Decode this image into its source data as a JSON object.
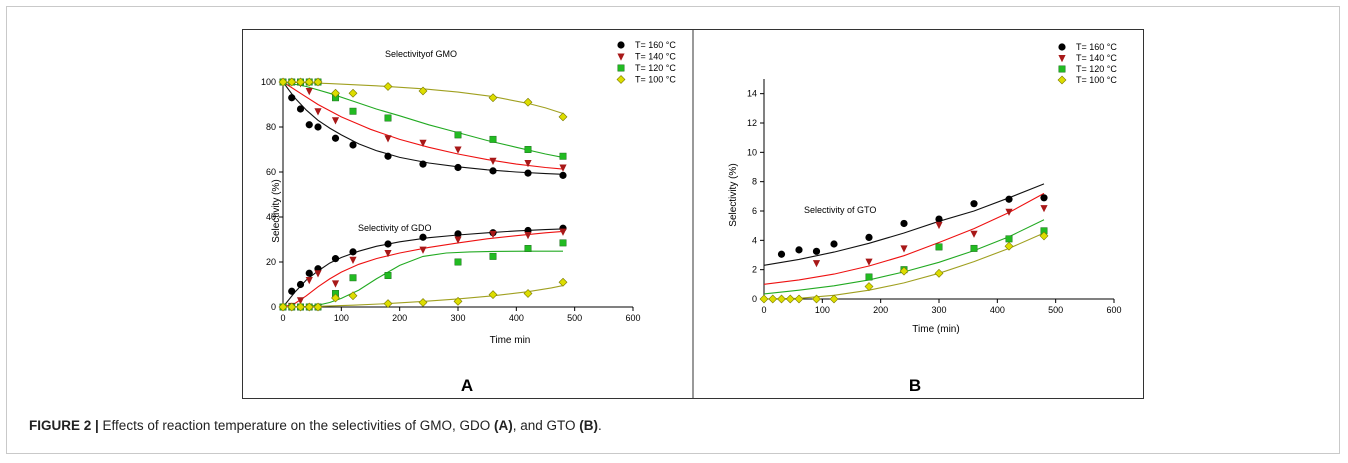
{
  "figure": {
    "caption": {
      "label": "FIGURE 2 |",
      "part1": " Effects of reaction temperature on the selectivities of GMO, GDO ",
      "ref_a": "(A)",
      "part2": ", and GTO ",
      "ref_b": "(B)",
      "part3": "."
    }
  },
  "colors": {
    "T160": "#000000",
    "T140": "#a81818",
    "T120": "#22bb22",
    "T100": "#dddd00",
    "fit160": "#111111",
    "fit140": "#ee1111",
    "fit120": "#22aa22",
    "fit100": "#a0a020"
  },
  "chart_data": [
    {
      "type": "scatter",
      "panel_label": "A",
      "xlabel": "Time min",
      "ylabel": "Selectivity  (%)",
      "xlim": [
        0,
        600
      ],
      "ylim": [
        0,
        100
      ],
      "xticks": [
        0,
        100,
        200,
        300,
        400,
        500,
        600
      ],
      "yticks": [
        0,
        20,
        40,
        60,
        80,
        100
      ],
      "grid": false,
      "legend_position": "top-right",
      "annotations": [
        "Selectivityof GMO",
        "Selectivity of GDO"
      ],
      "series": [
        {
          "name": "T= 160 °C",
          "group": "GMO",
          "marker": "circle",
          "color": "#000000",
          "x": [
            0,
            15,
            30,
            45,
            60,
            90,
            120,
            180,
            240,
            300,
            360,
            420,
            480
          ],
          "y": [
            100,
            93,
            88,
            81,
            80,
            75,
            72,
            67,
            63.5,
            62,
            60.5,
            59.5,
            58.5
          ]
        },
        {
          "name": "T= 140 °C",
          "group": "GMO",
          "marker": "triangle-down",
          "color": "#a81818",
          "x": [
            0,
            15,
            30,
            45,
            60,
            90,
            180,
            240,
            300,
            360,
            420,
            480
          ],
          "y": [
            100,
            100,
            99.5,
            96,
            87,
            83,
            75,
            73,
            70,
            65,
            64,
            62
          ]
        },
        {
          "name": "T= 120 °C",
          "group": "GMO",
          "marker": "square",
          "color": "#22bb22",
          "x": [
            0,
            15,
            30,
            45,
            60,
            90,
            120,
            180,
            300,
            360,
            420,
            480
          ],
          "y": [
            100,
            100,
            100,
            100,
            100,
            93,
            87,
            84,
            76.5,
            74.5,
            70,
            67
          ]
        },
        {
          "name": "T= 100 °C",
          "group": "GMO",
          "marker": "diamond",
          "color": "#dddd00",
          "x": [
            0,
            15,
            30,
            45,
            60,
            90,
            120,
            180,
            240,
            360,
            420,
            480
          ],
          "y": [
            100,
            100,
            100,
            100,
            100,
            95,
            95,
            98,
            96,
            93,
            91,
            84.5
          ]
        },
        {
          "group": "GDO",
          "marker": "circle",
          "color": "#000000",
          "x": [
            0,
            15,
            30,
            45,
            60,
            90,
            120,
            180,
            240,
            300,
            360,
            420,
            480
          ],
          "y": [
            0,
            7,
            10,
            15,
            17,
            21.5,
            24.5,
            28,
            31,
            32.5,
            33,
            34,
            35
          ]
        },
        {
          "group": "GDO",
          "marker": "triangle-down",
          "color": "#a81818",
          "x": [
            0,
            15,
            30,
            45,
            60,
            90,
            120,
            180,
            240,
            300,
            360,
            420,
            480
          ],
          "y": [
            0,
            0.5,
            3,
            12,
            15,
            10.5,
            21,
            24,
            25.5,
            30,
            32.5,
            32,
            33.5
          ]
        },
        {
          "group": "GDO",
          "marker": "square",
          "color": "#22bb22",
          "x": [
            0,
            15,
            30,
            45,
            60,
            90,
            120,
            180,
            300,
            360,
            420,
            480
          ],
          "y": [
            0,
            0,
            0,
            0,
            0,
            6,
            13,
            14,
            20,
            22.5,
            26,
            28.5
          ]
        },
        {
          "group": "GDO",
          "marker": "diamond",
          "color": "#dddd00",
          "x": [
            0,
            15,
            30,
            45,
            60,
            90,
            120,
            180,
            240,
            300,
            360,
            420,
            480
          ],
          "y": [
            0,
            0,
            0,
            0,
            0,
            4,
            5,
            1.5,
            2,
            2.5,
            5.5,
            6,
            11
          ]
        }
      ],
      "fits": [
        {
          "color": "#111111",
          "x": [
            0,
            20,
            40,
            60,
            80,
            100,
            130,
            160,
            200,
            250,
            300,
            350,
            400,
            450,
            480
          ],
          "y": [
            100,
            93,
            87.5,
            83,
            79.5,
            76.5,
            72.5,
            69.5,
            66.5,
            64,
            62.3,
            61,
            60,
            59.3,
            59
          ]
        },
        {
          "color": "#ee1111",
          "x": [
            0,
            30,
            60,
            100,
            150,
            200,
            250,
            300,
            350,
            400,
            450,
            480
          ],
          "y": [
            100,
            95,
            90,
            84.5,
            79,
            74.5,
            71,
            68,
            65.5,
            63.5,
            62,
            61.3
          ]
        },
        {
          "color": "#22aa22",
          "x": [
            0,
            40,
            80,
            120,
            160,
            200,
            250,
            300,
            350,
            400,
            450,
            480
          ],
          "y": [
            100,
            98,
            95,
            91.5,
            88,
            85,
            81,
            77.5,
            74,
            71,
            68,
            66.5
          ]
        },
        {
          "color": "#a0a020",
          "x": [
            0,
            80,
            160,
            240,
            300,
            360,
            420,
            450,
            480
          ],
          "y": [
            100,
            99.3,
            98.3,
            97,
            95.5,
            93.5,
            90.5,
            88.5,
            86
          ]
        },
        {
          "color": "#111111",
          "x": [
            0,
            20,
            40,
            60,
            80,
            100,
            130,
            160,
            200,
            250,
            300,
            350,
            400,
            450,
            480
          ],
          "y": [
            0,
            6.5,
            12,
            16,
            19.5,
            22,
            24.8,
            27,
            29,
            30.8,
            32,
            33,
            33.8,
            34.4,
            34.7
          ]
        },
        {
          "color": "#ee1111",
          "x": [
            0,
            20,
            40,
            60,
            80,
            100,
            130,
            160,
            200,
            250,
            300,
            350,
            400,
            450,
            480
          ],
          "y": [
            0,
            1.5,
            5,
            9,
            12.5,
            15.5,
            19,
            21.5,
            24,
            26.5,
            28.5,
            30.3,
            31.7,
            33,
            33.6
          ]
        },
        {
          "color": "#22aa22",
          "x": [
            0,
            40,
            60,
            80,
            100,
            130,
            160,
            200,
            240,
            280,
            320,
            360,
            420,
            480
          ],
          "y": [
            0,
            0.2,
            0.8,
            2,
            3.8,
            7.5,
            12.5,
            18.5,
            22.5,
            24,
            24.5,
            24.7,
            24.8,
            24.8
          ]
        },
        {
          "color": "#a0a020",
          "x": [
            0,
            60,
            120,
            180,
            240,
            300,
            360,
            420,
            460,
            480
          ],
          "y": [
            0,
            0.3,
            0.8,
            1.5,
            2.5,
            3.6,
            5,
            6.8,
            8.5,
            9.5
          ]
        }
      ]
    },
    {
      "type": "scatter",
      "panel_label": "B",
      "xlabel": "Time (min)",
      "ylabel": "Selectivity (%)",
      "xlim": [
        0,
        600
      ],
      "ylim": [
        0,
        15
      ],
      "xticks": [
        0,
        100,
        200,
        300,
        400,
        500,
        600
      ],
      "yticks": [
        0,
        2,
        4,
        6,
        8,
        10,
        12,
        14
      ],
      "grid": false,
      "legend_position": "top-right",
      "annotations": [
        "Selectivity of GTO"
      ],
      "series": [
        {
          "name": "T= 160 °C",
          "marker": "circle",
          "color": "#000000",
          "x": [
            30,
            60,
            90,
            120,
            180,
            240,
            300,
            360,
            420,
            480
          ],
          "y": [
            3.05,
            3.35,
            3.25,
            3.75,
            4.2,
            5.15,
            5.45,
            6.5,
            6.8,
            6.9
          ]
        },
        {
          "name": "T= 140 °C",
          "marker": "triangle-down",
          "color": "#a81818",
          "x": [
            90,
            180,
            240,
            300,
            360,
            420,
            480
          ],
          "y": [
            2.45,
            2.55,
            3.45,
            5.05,
            4.45,
            5.95,
            6.2
          ]
        },
        {
          "name": "T= 120 °C",
          "marker": "square",
          "color": "#22bb22",
          "x": [
            180,
            240,
            300,
            360,
            420,
            480
          ],
          "y": [
            1.5,
            2.0,
            3.55,
            3.45,
            4.1,
            4.65
          ]
        },
        {
          "name": "T= 100 °C",
          "marker": "diamond",
          "color": "#dddd00",
          "x": [
            0,
            15,
            30,
            45,
            60,
            90,
            120,
            180,
            240,
            300,
            420,
            480
          ],
          "y": [
            0,
            0,
            0,
            0,
            0,
            0,
            0,
            0.85,
            1.9,
            1.75,
            3.6,
            4.3
          ]
        }
      ],
      "fits": [
        {
          "color": "#111111",
          "x": [
            0,
            60,
            120,
            180,
            240,
            300,
            360,
            420,
            480
          ],
          "y": [
            2.3,
            2.7,
            3.2,
            3.8,
            4.5,
            5.3,
            6.0,
            6.9,
            7.85
          ]
        },
        {
          "color": "#ee1111",
          "x": [
            0,
            60,
            120,
            180,
            240,
            300,
            360,
            420,
            480
          ],
          "y": [
            1.0,
            1.3,
            1.7,
            2.25,
            2.95,
            3.85,
            4.8,
            5.9,
            7.2
          ]
        },
        {
          "color": "#22aa22",
          "x": [
            0,
            60,
            120,
            180,
            240,
            300,
            360,
            420,
            480
          ],
          "y": [
            0.35,
            0.6,
            0.9,
            1.3,
            1.85,
            2.5,
            3.3,
            4.25,
            5.4
          ]
        },
        {
          "color": "#a0a020",
          "x": [
            0,
            60,
            120,
            180,
            240,
            300,
            360,
            420,
            480
          ],
          "y": [
            0.0,
            0.05,
            0.25,
            0.6,
            1.1,
            1.75,
            2.55,
            3.45,
            4.5
          ]
        }
      ]
    }
  ]
}
